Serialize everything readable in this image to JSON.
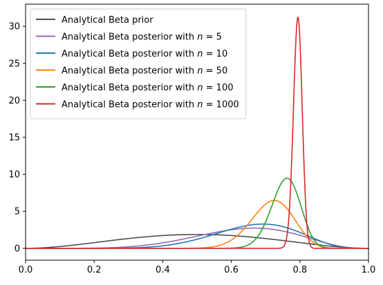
{
  "chart_data": {
    "type": "line",
    "title": "",
    "xlabel": "",
    "ylabel": "",
    "xlim": [
      0,
      1
    ],
    "ylim": [
      -1.6,
      33
    ],
    "x_ticks": [
      0.0,
      0.2,
      0.4,
      0.6,
      0.8,
      1.0
    ],
    "x_tick_labels": [
      "0.0",
      "0.2",
      "0.4",
      "0.6",
      "0.8",
      "1.0"
    ],
    "y_ticks": [
      0,
      5,
      10,
      15,
      20,
      25,
      30
    ],
    "y_tick_labels": [
      "0",
      "5",
      "10",
      "15",
      "20",
      "25",
      "30"
    ],
    "grid": false,
    "legend_placement": "top-left",
    "series": [
      {
        "name": "Analytical Beta prior",
        "legend_prefix": "Analytical Beta prior",
        "legend_n": "",
        "color": "#4d4d4d",
        "alpha": 3,
        "beta": 3
      },
      {
        "name": "Analytical Beta posterior with n = 5",
        "legend_prefix": "Analytical Beta posterior with ",
        "legend_n": "5",
        "color": "#9467bd",
        "alpha": 7,
        "beta": 4
      },
      {
        "name": "Analytical Beta posterior with n = 10",
        "legend_prefix": "Analytical Beta posterior with ",
        "legend_n": "10",
        "color": "#1f77b4",
        "alpha": 10,
        "beta": 5
      },
      {
        "name": "Analytical Beta posterior with n = 50",
        "legend_prefix": "Analytical Beta posterior with ",
        "legend_n": "50",
        "color": "#ff7f0e",
        "alpha": 38,
        "beta": 15
      },
      {
        "name": "Analytical Beta posterior with n = 100",
        "legend_prefix": "Analytical Beta posterior with ",
        "legend_n": "100",
        "color": "#2ca02c",
        "alpha": 78,
        "beta": 25
      },
      {
        "name": "Analytical Beta posterior with n = 1000",
        "legend_prefix": "Analytical Beta posterior with ",
        "legend_n": "1000",
        "color": "#d62728",
        "alpha": 796,
        "beta": 207
      }
    ]
  }
}
